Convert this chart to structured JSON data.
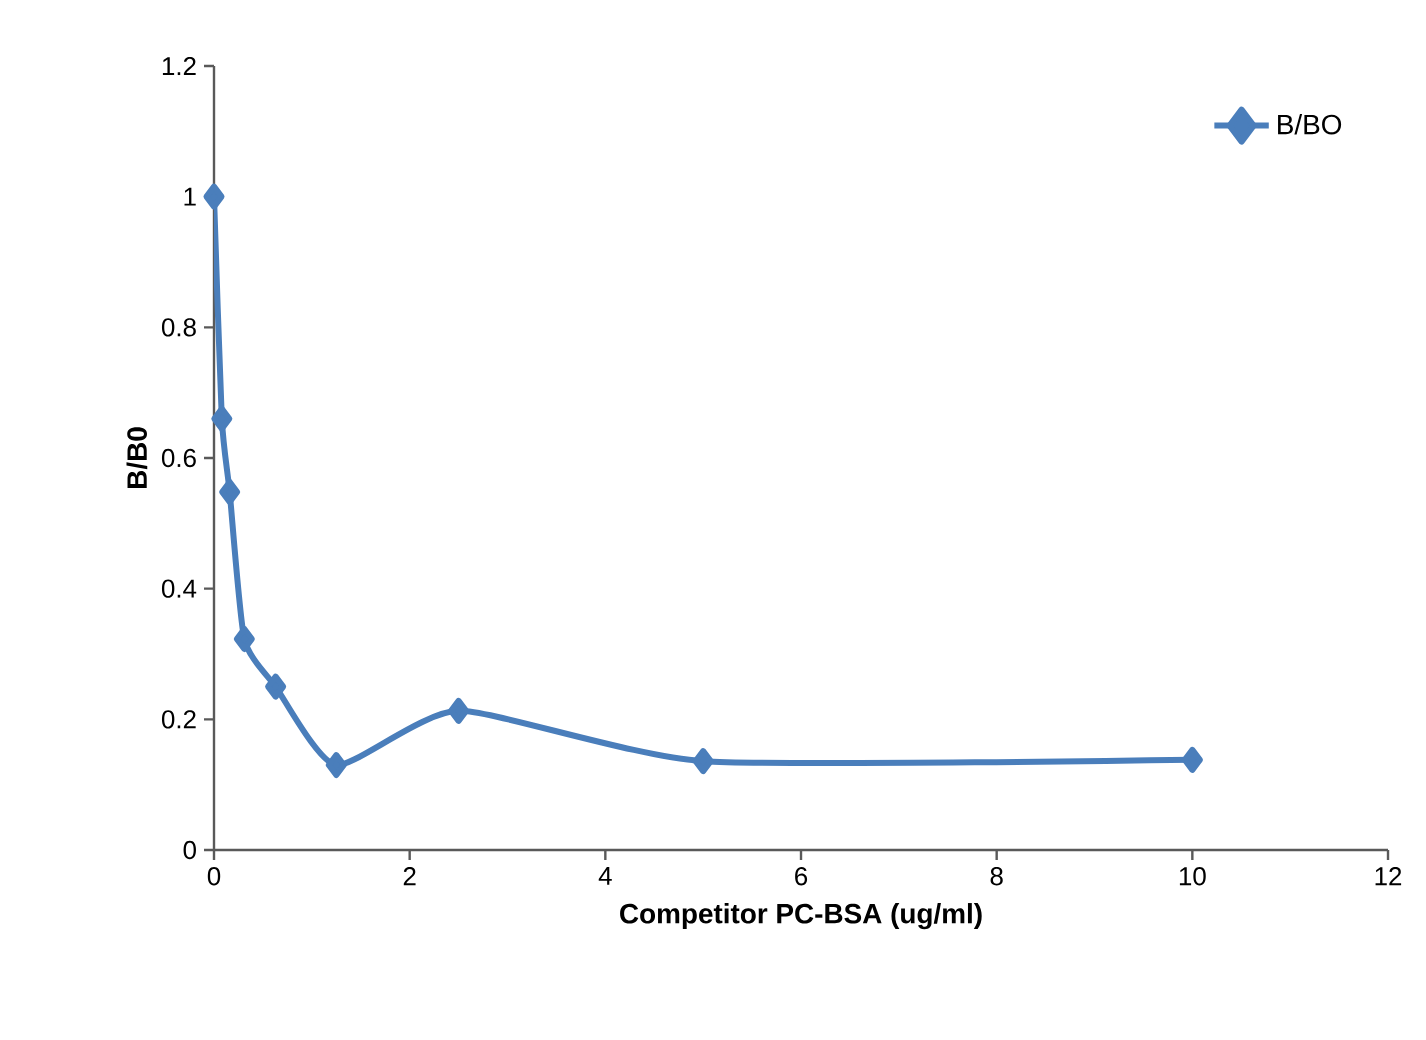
{
  "chart_data": {
    "type": "line",
    "xlabel": "Competitor PC-BSA (ug/ml)",
    "ylabel": "B/B0",
    "series": [
      {
        "name": "B/BO",
        "color": "#4a7ebb",
        "x": [
          0,
          0.08,
          0.16,
          0.31,
          0.63,
          1.25,
          2.5,
          5,
          10
        ],
        "values": [
          1.0,
          0.66,
          0.548,
          0.323,
          0.25,
          0.13,
          0.213,
          0.136,
          0.138
        ]
      }
    ],
    "xlim": [
      0,
      12
    ],
    "xticks": [
      0,
      2,
      4,
      6,
      8,
      10,
      12
    ],
    "ylim": [
      0,
      1.2
    ],
    "yticks": [
      0,
      0.2,
      0.4,
      0.6,
      0.8,
      1,
      1.2
    ],
    "grid": false,
    "legend": "top right",
    "marker": "diamond",
    "line_style": "solid"
  }
}
